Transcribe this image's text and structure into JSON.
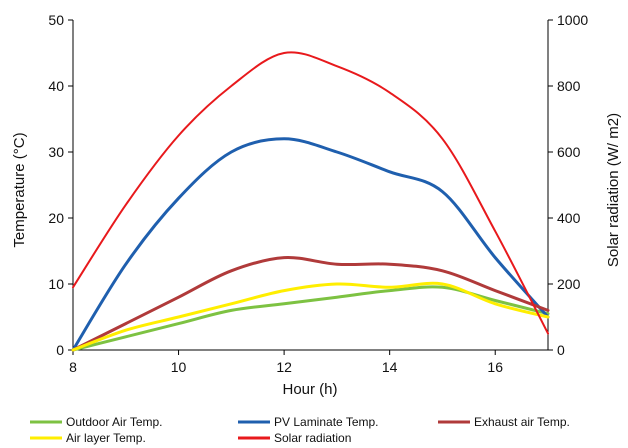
{
  "chart_data": {
    "type": "line",
    "xlabel": "Hour (h)",
    "ylabel_left": "Temperature (°C)",
    "ylabel_right": "Solar radiation (W/ m2)",
    "xlim": [
      8,
      17
    ],
    "ylim_left": [
      0,
      50
    ],
    "ylim_right": [
      0,
      1000
    ],
    "x_ticks": [
      8,
      10,
      12,
      14,
      16
    ],
    "y_left_ticks": [
      0,
      10,
      20,
      30,
      40,
      50
    ],
    "y_right_ticks": [
      0,
      200,
      400,
      600,
      800,
      1000
    ],
    "legend_position": "bottom",
    "grid": false,
    "series": [
      {
        "name": "Outdoor Air Temp.",
        "axis": "left",
        "color": "#7dc242",
        "x": [
          8,
          9,
          10,
          11,
          12,
          13,
          14,
          15,
          16,
          17
        ],
        "y": [
          0,
          2,
          4,
          6,
          7,
          8,
          9,
          9.5,
          7.5,
          5.5
        ]
      },
      {
        "name": "PV Laminate Temp.",
        "axis": "left",
        "color": "#1f5fae",
        "x": [
          8,
          9,
          10,
          11,
          12,
          13,
          14,
          15,
          16,
          17
        ],
        "y": [
          0,
          13,
          23,
          30,
          32,
          30,
          27,
          24,
          14,
          5
        ]
      },
      {
        "name": "Exhaust air Temp.",
        "axis": "left",
        "color": "#b03a3a",
        "x": [
          8,
          9,
          10,
          11,
          12,
          13,
          14,
          15,
          16,
          17
        ],
        "y": [
          0,
          4,
          8,
          12,
          14,
          13,
          13,
          12,
          9,
          6
        ]
      },
      {
        "name": "Air layer Temp.",
        "axis": "left",
        "color": "#ffee00",
        "x": [
          8,
          9,
          10,
          11,
          12,
          13,
          14,
          15,
          16,
          17
        ],
        "y": [
          0,
          3,
          5,
          7,
          9,
          10,
          9.5,
          10,
          7,
          5
        ]
      },
      {
        "name": "Solar radiation",
        "axis": "right",
        "color": "#e8191c",
        "x": [
          8,
          9,
          10,
          11,
          12,
          13,
          14,
          15,
          16,
          17
        ],
        "y": [
          190,
          440,
          650,
          800,
          900,
          860,
          780,
          640,
          360,
          50
        ]
      }
    ]
  }
}
